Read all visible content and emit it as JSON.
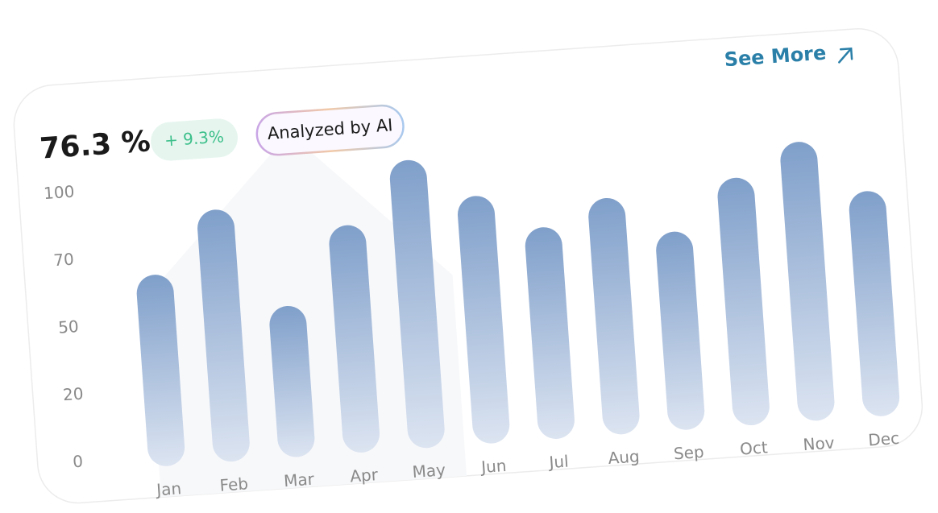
{
  "header": {
    "value": "76.3 %",
    "change": "+ 9.3%",
    "badge": "Analyzed by AI",
    "link": "See More"
  },
  "chart_data": {
    "type": "bar",
    "categories": [
      "Jan",
      "Feb",
      "Mar",
      "Apr",
      "May",
      "Jun",
      "Jul",
      "Aug",
      "Sep",
      "Oct",
      "Nov",
      "Dec"
    ],
    "values": [
      64,
      88,
      52,
      77,
      104,
      86,
      70,
      81,
      66,
      86,
      100,
      76
    ],
    "color": "#7f9fca",
    "ylim": [
      0,
      100
    ],
    "yticks": [
      0,
      20,
      50,
      70,
      100
    ],
    "grid": false
  }
}
